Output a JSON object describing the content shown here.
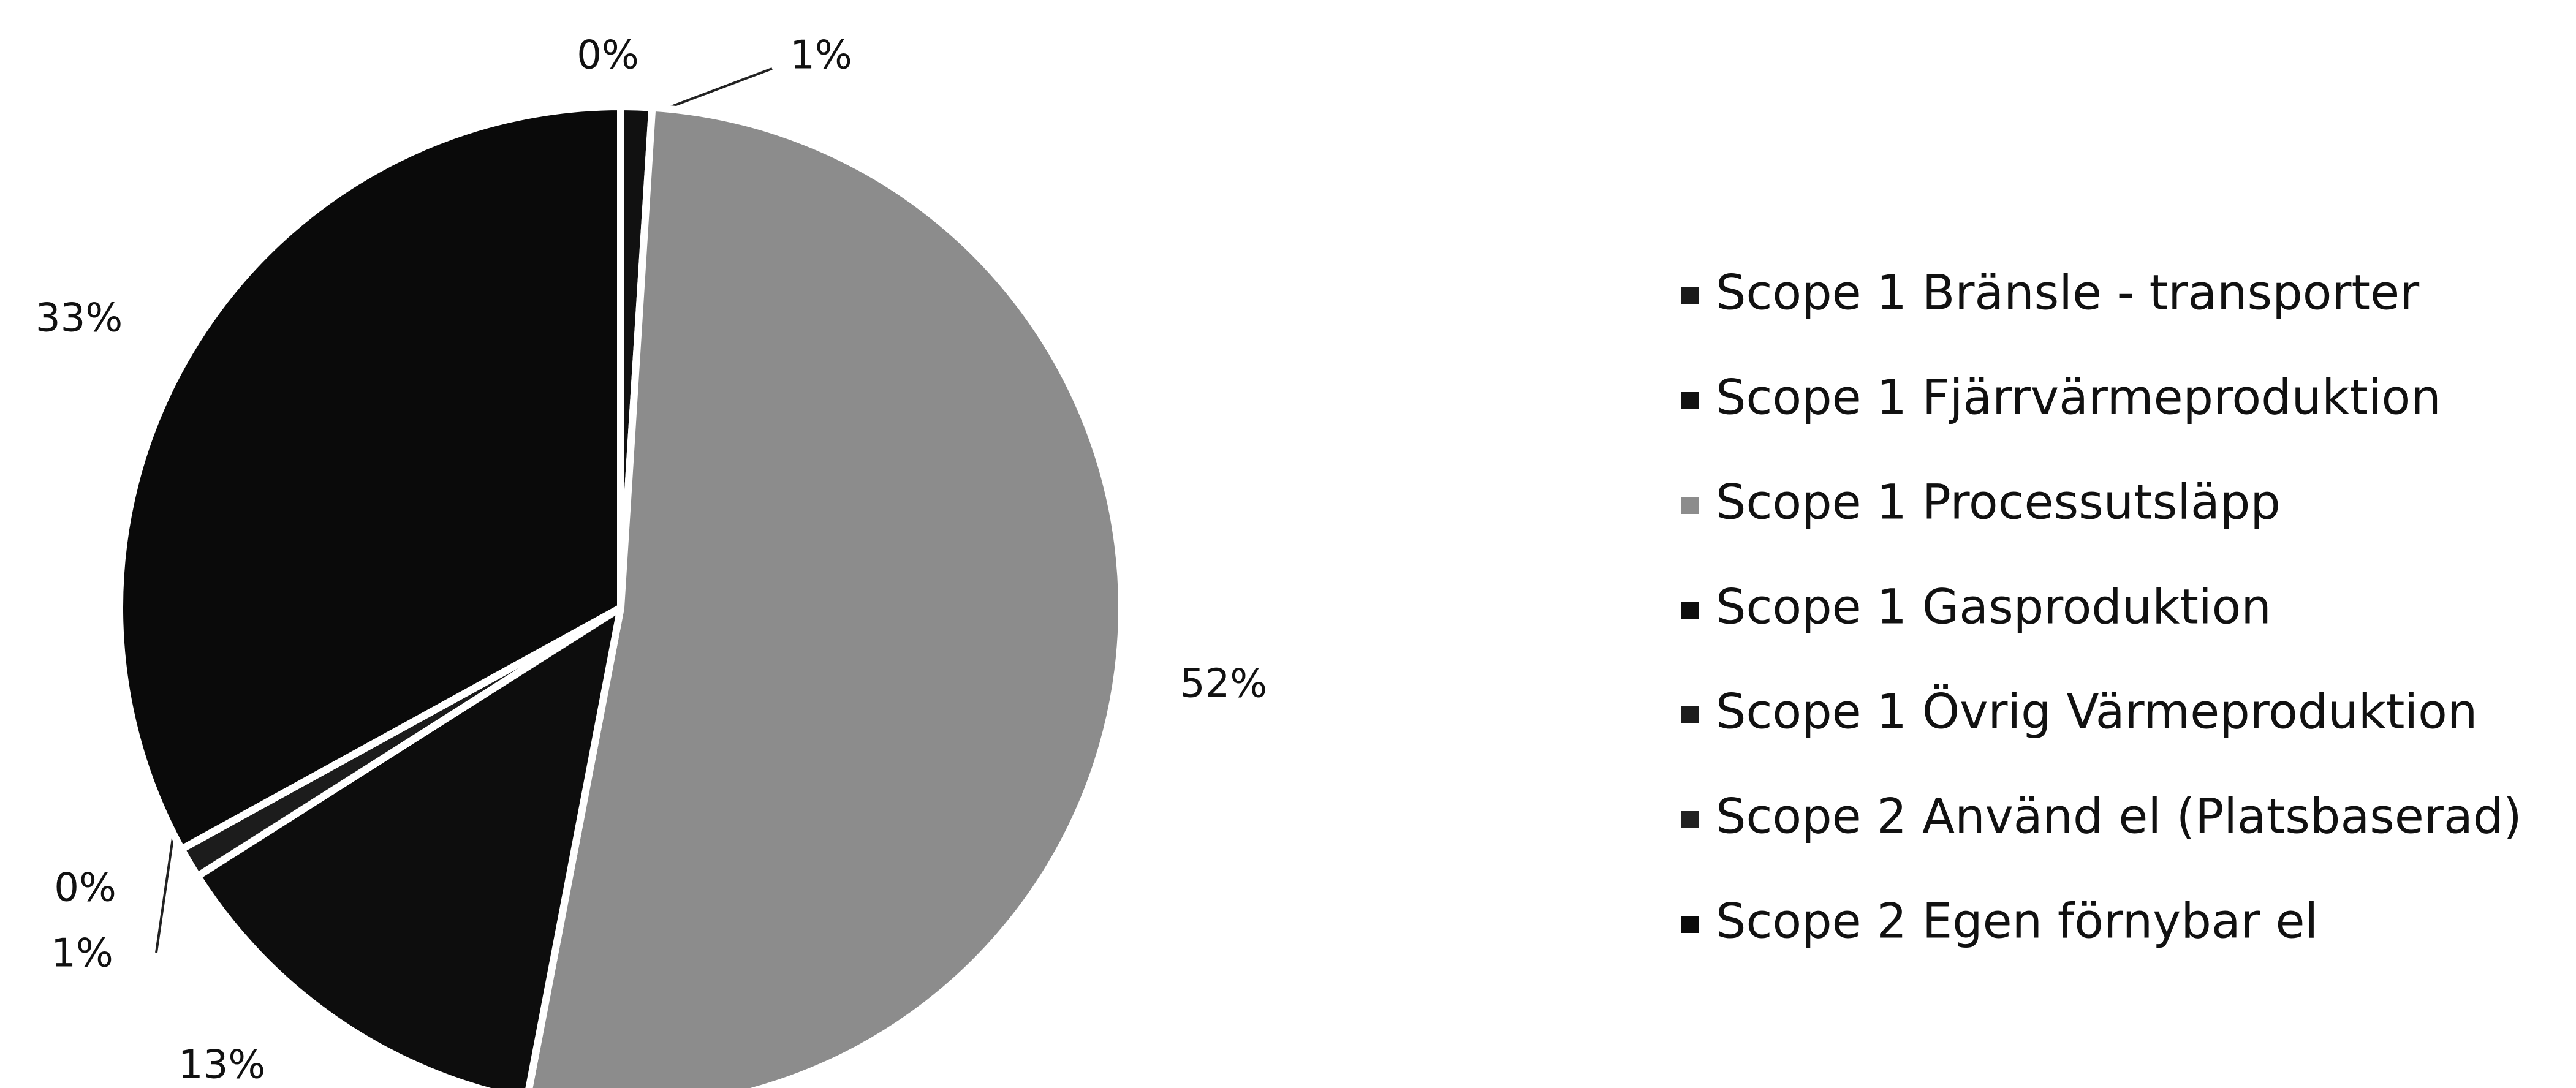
{
  "chart_data": {
    "type": "pie",
    "categories": [
      "Scope 1 Bränsle - transporter",
      "Scope 1 Fjärrvärmeproduktion",
      "Scope 1 Processutsläpp",
      "Scope 1 Gasproduktion",
      "Scope 1 Övrig Värmeproduktion",
      "Scope 2 Använd el (Platsbaserad)",
      "Scope 2 Egen förnybar el"
    ],
    "values": [
      0,
      1,
      52,
      13,
      1,
      0,
      33
    ],
    "value_labels": [
      "0%",
      "1%",
      "52%",
      "13%",
      "1%",
      "0%",
      "33%"
    ],
    "colors": [
      "#1a1a1a",
      "#111111",
      "#8c8c8c",
      "#0d0d0d",
      "#1c1c1c",
      "#222222",
      "#0a0a0a"
    ],
    "legend": "right"
  }
}
